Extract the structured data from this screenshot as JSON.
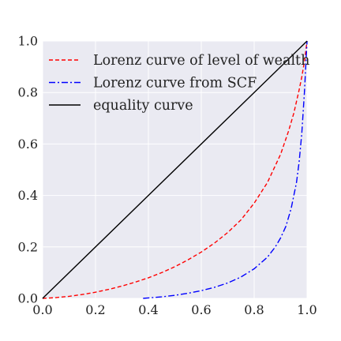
{
  "chart_data": {
    "type": "line",
    "title": "",
    "xlabel": "",
    "ylabel": "",
    "xlim": [
      0.0,
      1.0
    ],
    "ylim": [
      0.0,
      1.0
    ],
    "grid": true,
    "background_color": "#eaeaf2",
    "grid_color": "#ffffff",
    "legend_position": "upper-left",
    "x_ticks": [
      0.0,
      0.2,
      0.4,
      0.6,
      0.8,
      1.0
    ],
    "y_ticks": [
      0.0,
      0.2,
      0.4,
      0.6,
      0.8,
      1.0
    ],
    "x_tick_labels": [
      "0.0",
      "0.2",
      "0.4",
      "0.6",
      "0.8",
      "1.0"
    ],
    "y_tick_labels": [
      "0.0",
      "0.2",
      "0.4",
      "0.6",
      "0.8",
      "1.0"
    ],
    "series": [
      {
        "name": "Lorenz curve of level of wealth",
        "color": "#ff0000",
        "dash": "dashed",
        "x": [
          0.0,
          0.05,
          0.1,
          0.15,
          0.2,
          0.25,
          0.3,
          0.35,
          0.4,
          0.45,
          0.5,
          0.55,
          0.6,
          0.65,
          0.7,
          0.75,
          0.8,
          0.85,
          0.9,
          0.93,
          0.95,
          0.97,
          0.98,
          0.99,
          1.0
        ],
        "y": [
          0.0,
          0.003,
          0.008,
          0.015,
          0.024,
          0.035,
          0.048,
          0.063,
          0.08,
          0.1,
          0.123,
          0.15,
          0.18,
          0.215,
          0.256,
          0.305,
          0.37,
          0.45,
          0.56,
          0.65,
          0.72,
          0.81,
          0.86,
          0.92,
          1.0
        ]
      },
      {
        "name": "Lorenz curve from SCF",
        "color": "#0000ff",
        "dash": "dashdot",
        "x": [
          0.38,
          0.45,
          0.5,
          0.55,
          0.6,
          0.65,
          0.7,
          0.75,
          0.8,
          0.85,
          0.88,
          0.9,
          0.92,
          0.94,
          0.96,
          0.97,
          0.98,
          0.99,
          1.0
        ],
        "y": [
          0.0,
          0.006,
          0.012,
          0.02,
          0.03,
          0.043,
          0.06,
          0.083,
          0.115,
          0.16,
          0.2,
          0.235,
          0.28,
          0.35,
          0.45,
          0.53,
          0.64,
          0.8,
          1.0
        ]
      },
      {
        "name": "equality curve",
        "color": "#000000",
        "dash": "solid",
        "x": [
          0.0,
          1.0
        ],
        "y": [
          0.0,
          1.0
        ]
      }
    ]
  }
}
